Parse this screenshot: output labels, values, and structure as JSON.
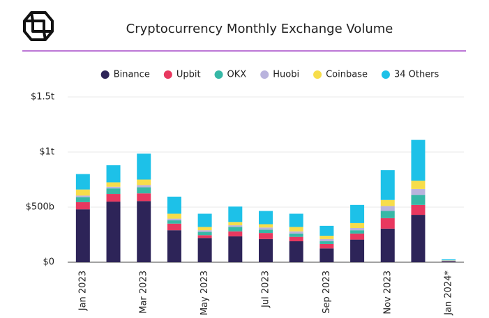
{
  "chart_data": {
    "type": "stacked_bar",
    "title": "Cryptocurrency Monthly Exchange Volume",
    "categories": [
      "Jan 2023",
      null,
      "Mar 2023",
      null,
      "May 2023",
      null,
      "Jul 2023",
      null,
      "Sep 2023",
      null,
      "Nov 2023",
      null,
      "Jan 2024*"
    ],
    "series": [
      {
        "name": "Binance",
        "color": "#2d2458",
        "values": [
          480,
          550,
          555,
          290,
          220,
          235,
          210,
          190,
          125,
          205,
          305,
          430,
          8
        ]
      },
      {
        "name": "Upbit",
        "color": "#e8385f",
        "values": [
          65,
          70,
          70,
          60,
          25,
          45,
          55,
          40,
          40,
          55,
          95,
          90,
          3
        ]
      },
      {
        "name": "OKX",
        "color": "#36b8a6",
        "values": [
          45,
          50,
          55,
          30,
          30,
          40,
          30,
          30,
          25,
          30,
          65,
          90,
          3
        ]
      },
      {
        "name": "Huobi",
        "color": "#b9b3dd",
        "values": [
          15,
          15,
          20,
          15,
          15,
          15,
          20,
          20,
          20,
          20,
          45,
          55,
          2
        ]
      },
      {
        "name": "Coinbase",
        "color": "#f7dd4a",
        "values": [
          55,
          40,
          50,
          45,
          30,
          30,
          30,
          40,
          30,
          45,
          55,
          75,
          2
        ]
      },
      {
        "name": "34 Others",
        "color": "#1dc1e8",
        "values": [
          140,
          155,
          235,
          155,
          120,
          140,
          120,
          120,
          90,
          165,
          270,
          370,
          8
        ]
      }
    ],
    "ylim": [
      0,
      1500
    ],
    "yticks": [
      {
        "value": 0,
        "label": "$0"
      },
      {
        "value": 500,
        "label": "$500b"
      },
      {
        "value": 1000,
        "label": "$1t"
      },
      {
        "value": 1500,
        "label": "$1.5t"
      }
    ],
    "grid": true,
    "legend": "top"
  }
}
